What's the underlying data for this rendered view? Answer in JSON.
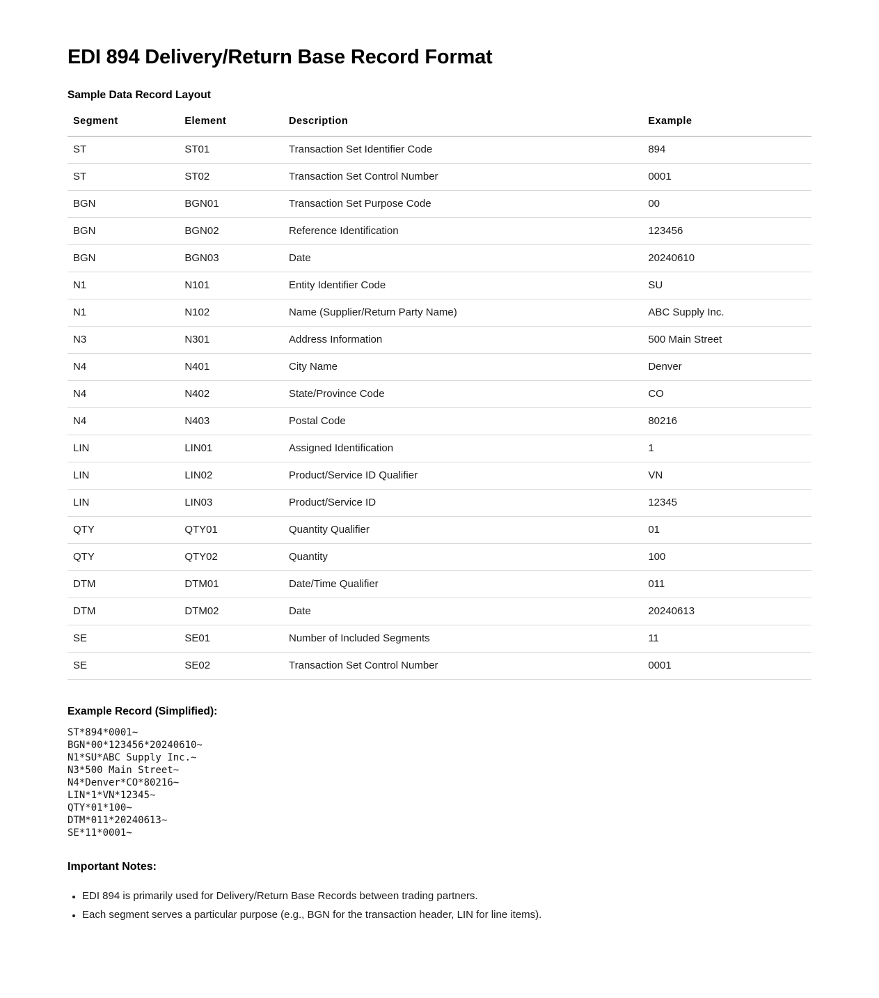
{
  "page": {
    "title": "EDI 894 Delivery/Return Base Record Format",
    "subtitle": "Sample Data Record Layout"
  },
  "table": {
    "headers": [
      "Segment",
      "Element",
      "Description",
      "Example"
    ],
    "rows": [
      [
        "ST",
        "ST01",
        "Transaction Set Identifier Code",
        "894"
      ],
      [
        "ST",
        "ST02",
        "Transaction Set Control Number",
        "0001"
      ],
      [
        "BGN",
        "BGN01",
        "Transaction Set Purpose Code",
        "00"
      ],
      [
        "BGN",
        "BGN02",
        "Reference Identification",
        "123456"
      ],
      [
        "BGN",
        "BGN03",
        "Date",
        "20240610"
      ],
      [
        "N1",
        "N101",
        "Entity Identifier Code",
        "SU"
      ],
      [
        "N1",
        "N102",
        "Name (Supplier/Return Party Name)",
        "ABC Supply Inc."
      ],
      [
        "N3",
        "N301",
        "Address Information",
        "500 Main Street"
      ],
      [
        "N4",
        "N401",
        "City Name",
        "Denver"
      ],
      [
        "N4",
        "N402",
        "State/Province Code",
        "CO"
      ],
      [
        "N4",
        "N403",
        "Postal Code",
        "80216"
      ],
      [
        "LIN",
        "LIN01",
        "Assigned Identification",
        "1"
      ],
      [
        "LIN",
        "LIN02",
        "Product/Service ID Qualifier",
        "VN"
      ],
      [
        "LIN",
        "LIN03",
        "Product/Service ID",
        "12345"
      ],
      [
        "QTY",
        "QTY01",
        "Quantity Qualifier",
        "01"
      ],
      [
        "QTY",
        "QTY02",
        "Quantity",
        "100"
      ],
      [
        "DTM",
        "DTM01",
        "Date/Time Qualifier",
        "011"
      ],
      [
        "DTM",
        "DTM02",
        "Date",
        "20240613"
      ],
      [
        "SE",
        "SE01",
        "Number of Included Segments",
        "11"
      ],
      [
        "SE",
        "SE02",
        "Transaction Set Control Number",
        "0001"
      ]
    ]
  },
  "example_record": {
    "heading": "Example Record (Simplified):",
    "lines": [
      "ST*894*0001~",
      "BGN*00*123456*20240610~",
      "N1*SU*ABC Supply Inc.~",
      "N3*500 Main Street~",
      "N4*Denver*CO*80216~",
      "LIN*1*VN*12345~",
      "QTY*01*100~",
      "DTM*011*20240613~",
      "SE*11*0001~"
    ]
  },
  "notes": {
    "heading": "Important Notes:",
    "items": [
      "EDI 894 is primarily used for Delivery/Return Base Records between trading partners.",
      "Each segment serves a particular purpose (e.g., BGN for the transaction header, LIN for line items)."
    ]
  },
  "colors": {
    "text": "#1b1b1b",
    "title": "#000000",
    "header_border": "#9b9b9b",
    "row_border": "#d8d8d8",
    "background": "#ffffff"
  }
}
